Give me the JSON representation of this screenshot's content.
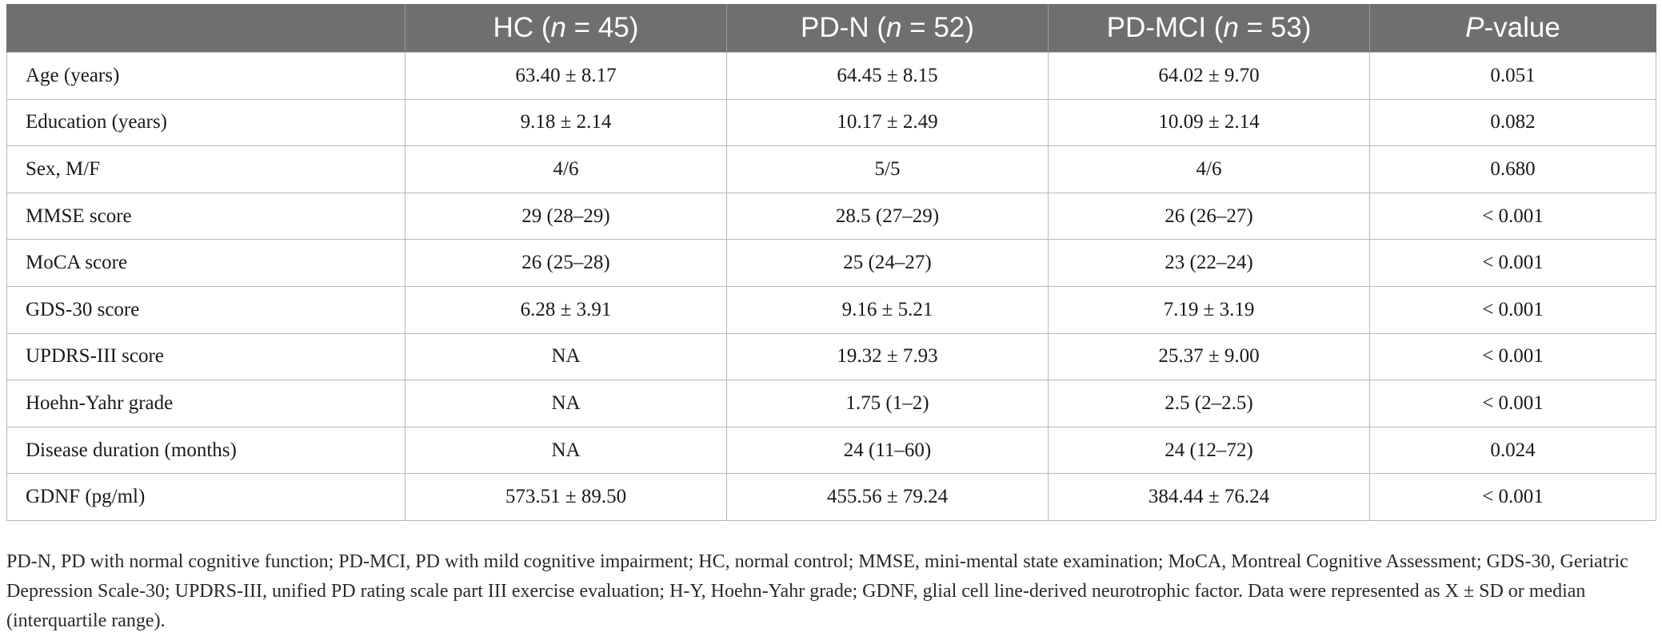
{
  "table": {
    "headers": [
      {
        "pre": "",
        "it": "",
        "post": ""
      },
      {
        "pre": "HC (",
        "it": "n",
        "post": " = 45)"
      },
      {
        "pre": "PD-N (",
        "it": "n",
        "post": " = 52)"
      },
      {
        "pre": "PD-MCI (",
        "it": "n",
        "post": " = 53)"
      },
      {
        "pre": "",
        "it": "P",
        "post": "-value"
      }
    ],
    "rows": [
      [
        "Age (years)",
        "63.40 ± 8.17",
        "64.45 ± 8.15",
        "64.02 ± 9.70",
        "0.051"
      ],
      [
        "Education (years)",
        "9.18 ± 2.14",
        "10.17 ± 2.49",
        "10.09 ± 2.14",
        "0.082"
      ],
      [
        "Sex, M/F",
        "4/6",
        "5/5",
        "4/6",
        "0.680"
      ],
      [
        "MMSE score",
        "29 (28–29)",
        "28.5 (27–29)",
        "26 (26–27)",
        "< 0.001"
      ],
      [
        "MoCA score",
        "26 (25–28)",
        "25 (24–27)",
        "23 (22–24)",
        "< 0.001"
      ],
      [
        "GDS-30 score",
        "6.28 ± 3.91",
        "9.16 ± 5.21",
        "7.19 ± 3.19",
        "< 0.001"
      ],
      [
        "UPDRS-III score",
        "NA",
        "19.32 ± 7.93",
        "25.37 ± 9.00",
        "< 0.001"
      ],
      [
        "Hoehn-Yahr grade",
        "NA",
        "1.75 (1–2)",
        "2.5 (2–2.5)",
        "< 0.001"
      ],
      [
        "Disease duration (months)",
        "NA",
        "24 (11–60)",
        "24 (12–72)",
        "0.024"
      ],
      [
        "GDNF (pg/ml)",
        "573.51 ± 89.50",
        "455.56 ± 79.24",
        "384.44 ± 76.24",
        "< 0.001"
      ]
    ]
  },
  "footnote": "PD-N, PD with normal cognitive function; PD-MCI, PD with mild cognitive impairment; HC, normal control; MMSE, mini-mental state examination; MoCA, Montreal Cognitive Assessment; GDS-30, Geriatric Depression Scale-30; UPDRS-III, unified PD rating scale part III exercise evaluation; H-Y, Hoehn-Yahr grade; GDNF, glial cell line-derived neurotrophic factor. Data were represented as X ± SD or median (interquartile range)."
}
